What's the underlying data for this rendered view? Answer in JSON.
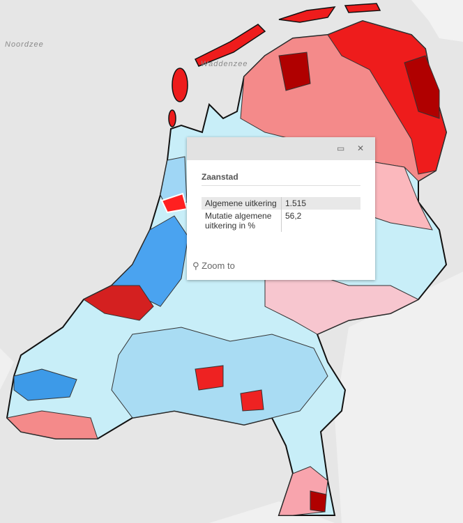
{
  "map": {
    "labels": [
      "Noordzee",
      "Waddenzee"
    ]
  },
  "popup": {
    "title": "Zaanstad",
    "fields": [
      {
        "label": "Algemene uitkering",
        "value": "1.515"
      },
      {
        "label": "Mutatie algemene uitkering in %",
        "value": "56,2"
      }
    ],
    "action": "Zoom to"
  }
}
